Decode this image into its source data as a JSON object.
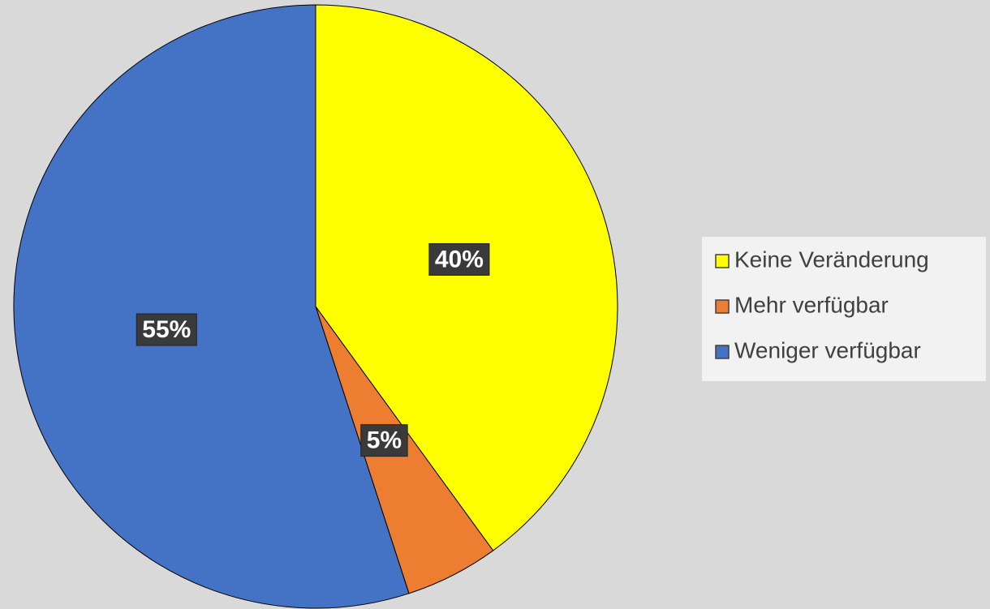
{
  "chart_data": {
    "type": "pie",
    "categories": [
      "Keine Veränderung",
      "Mehr verfügbar",
      "Weniger verfügbar"
    ],
    "values": [
      40,
      5,
      55
    ],
    "value_labels": [
      "40%",
      "5%",
      "55%"
    ],
    "colors": [
      "#ffff00",
      "#ed7d31",
      "#4472c4"
    ],
    "legend": "right"
  }
}
